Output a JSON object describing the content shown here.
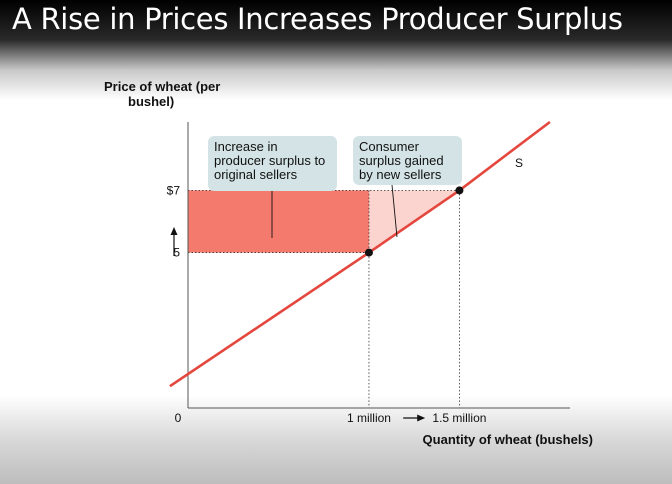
{
  "slide": {
    "title": "A Rise in Prices Increases Producer Surplus"
  },
  "chart_data": {
    "type": "line",
    "title": "A Rise in Prices Increases Producer Surplus",
    "ylabel_lines": [
      "Price of wheat (per",
      "bushel)"
    ],
    "xlabel": "Quantity of wheat (bushels)",
    "xlim": [
      0,
      2.1
    ],
    "ylim": [
      0,
      9.2
    ],
    "origin_label": "0",
    "y_ticks": [
      {
        "value": 7,
        "label": "$7"
      },
      {
        "value": 5,
        "label": "5"
      }
    ],
    "x_ticks": [
      {
        "value": 1.0,
        "label": "1 million"
      },
      {
        "value": 1.5,
        "label": "1.5 million"
      }
    ],
    "series": [
      {
        "name": "S",
        "x": [
          -0.1,
          1.0,
          1.5,
          2.0
        ],
        "y": [
          0.7,
          5,
          7,
          9.2
        ],
        "color": "#e4473e"
      }
    ],
    "points": [
      {
        "x": 1.0,
        "y": 5
      },
      {
        "x": 1.5,
        "y": 7
      }
    ],
    "regions": [
      {
        "label_lines": [
          "Increase in",
          "producer surplus to",
          "original sellers"
        ],
        "color": "#f47a6e"
      },
      {
        "label_lines": [
          "Consumer",
          "surplus gained",
          "by new sellers"
        ],
        "color": "#fbd3cf"
      }
    ],
    "annotation_bg": "#d4e4e6"
  }
}
